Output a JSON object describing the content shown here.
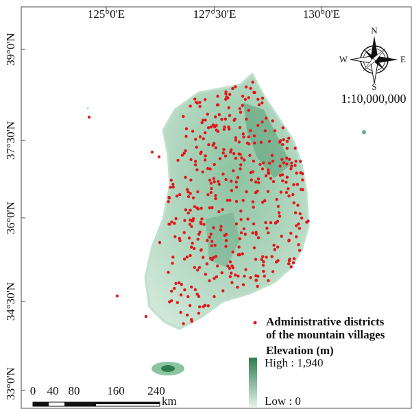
{
  "map": {
    "x_labels": [
      "125°0'E",
      "127°30'E",
      "130°0'E"
    ],
    "y_labels": [
      "39°0'N",
      "37°30'N",
      "36°0'N",
      "34°30'N",
      "33°0'N"
    ],
    "compass": {
      "n": "N",
      "e": "E",
      "s": "S",
      "w": "W"
    },
    "scale_ratio": "1:10,000,000",
    "scale_bar": {
      "ticks": [
        "0",
        "40",
        "80",
        "160",
        "240"
      ],
      "unit": "km"
    },
    "legend": {
      "points": [
        "Administrative districts",
        "of the mountain villages"
      ],
      "elevation_title": "Elevation (m)",
      "high": "High : 1,940",
      "low": "Low : 0"
    }
  }
}
